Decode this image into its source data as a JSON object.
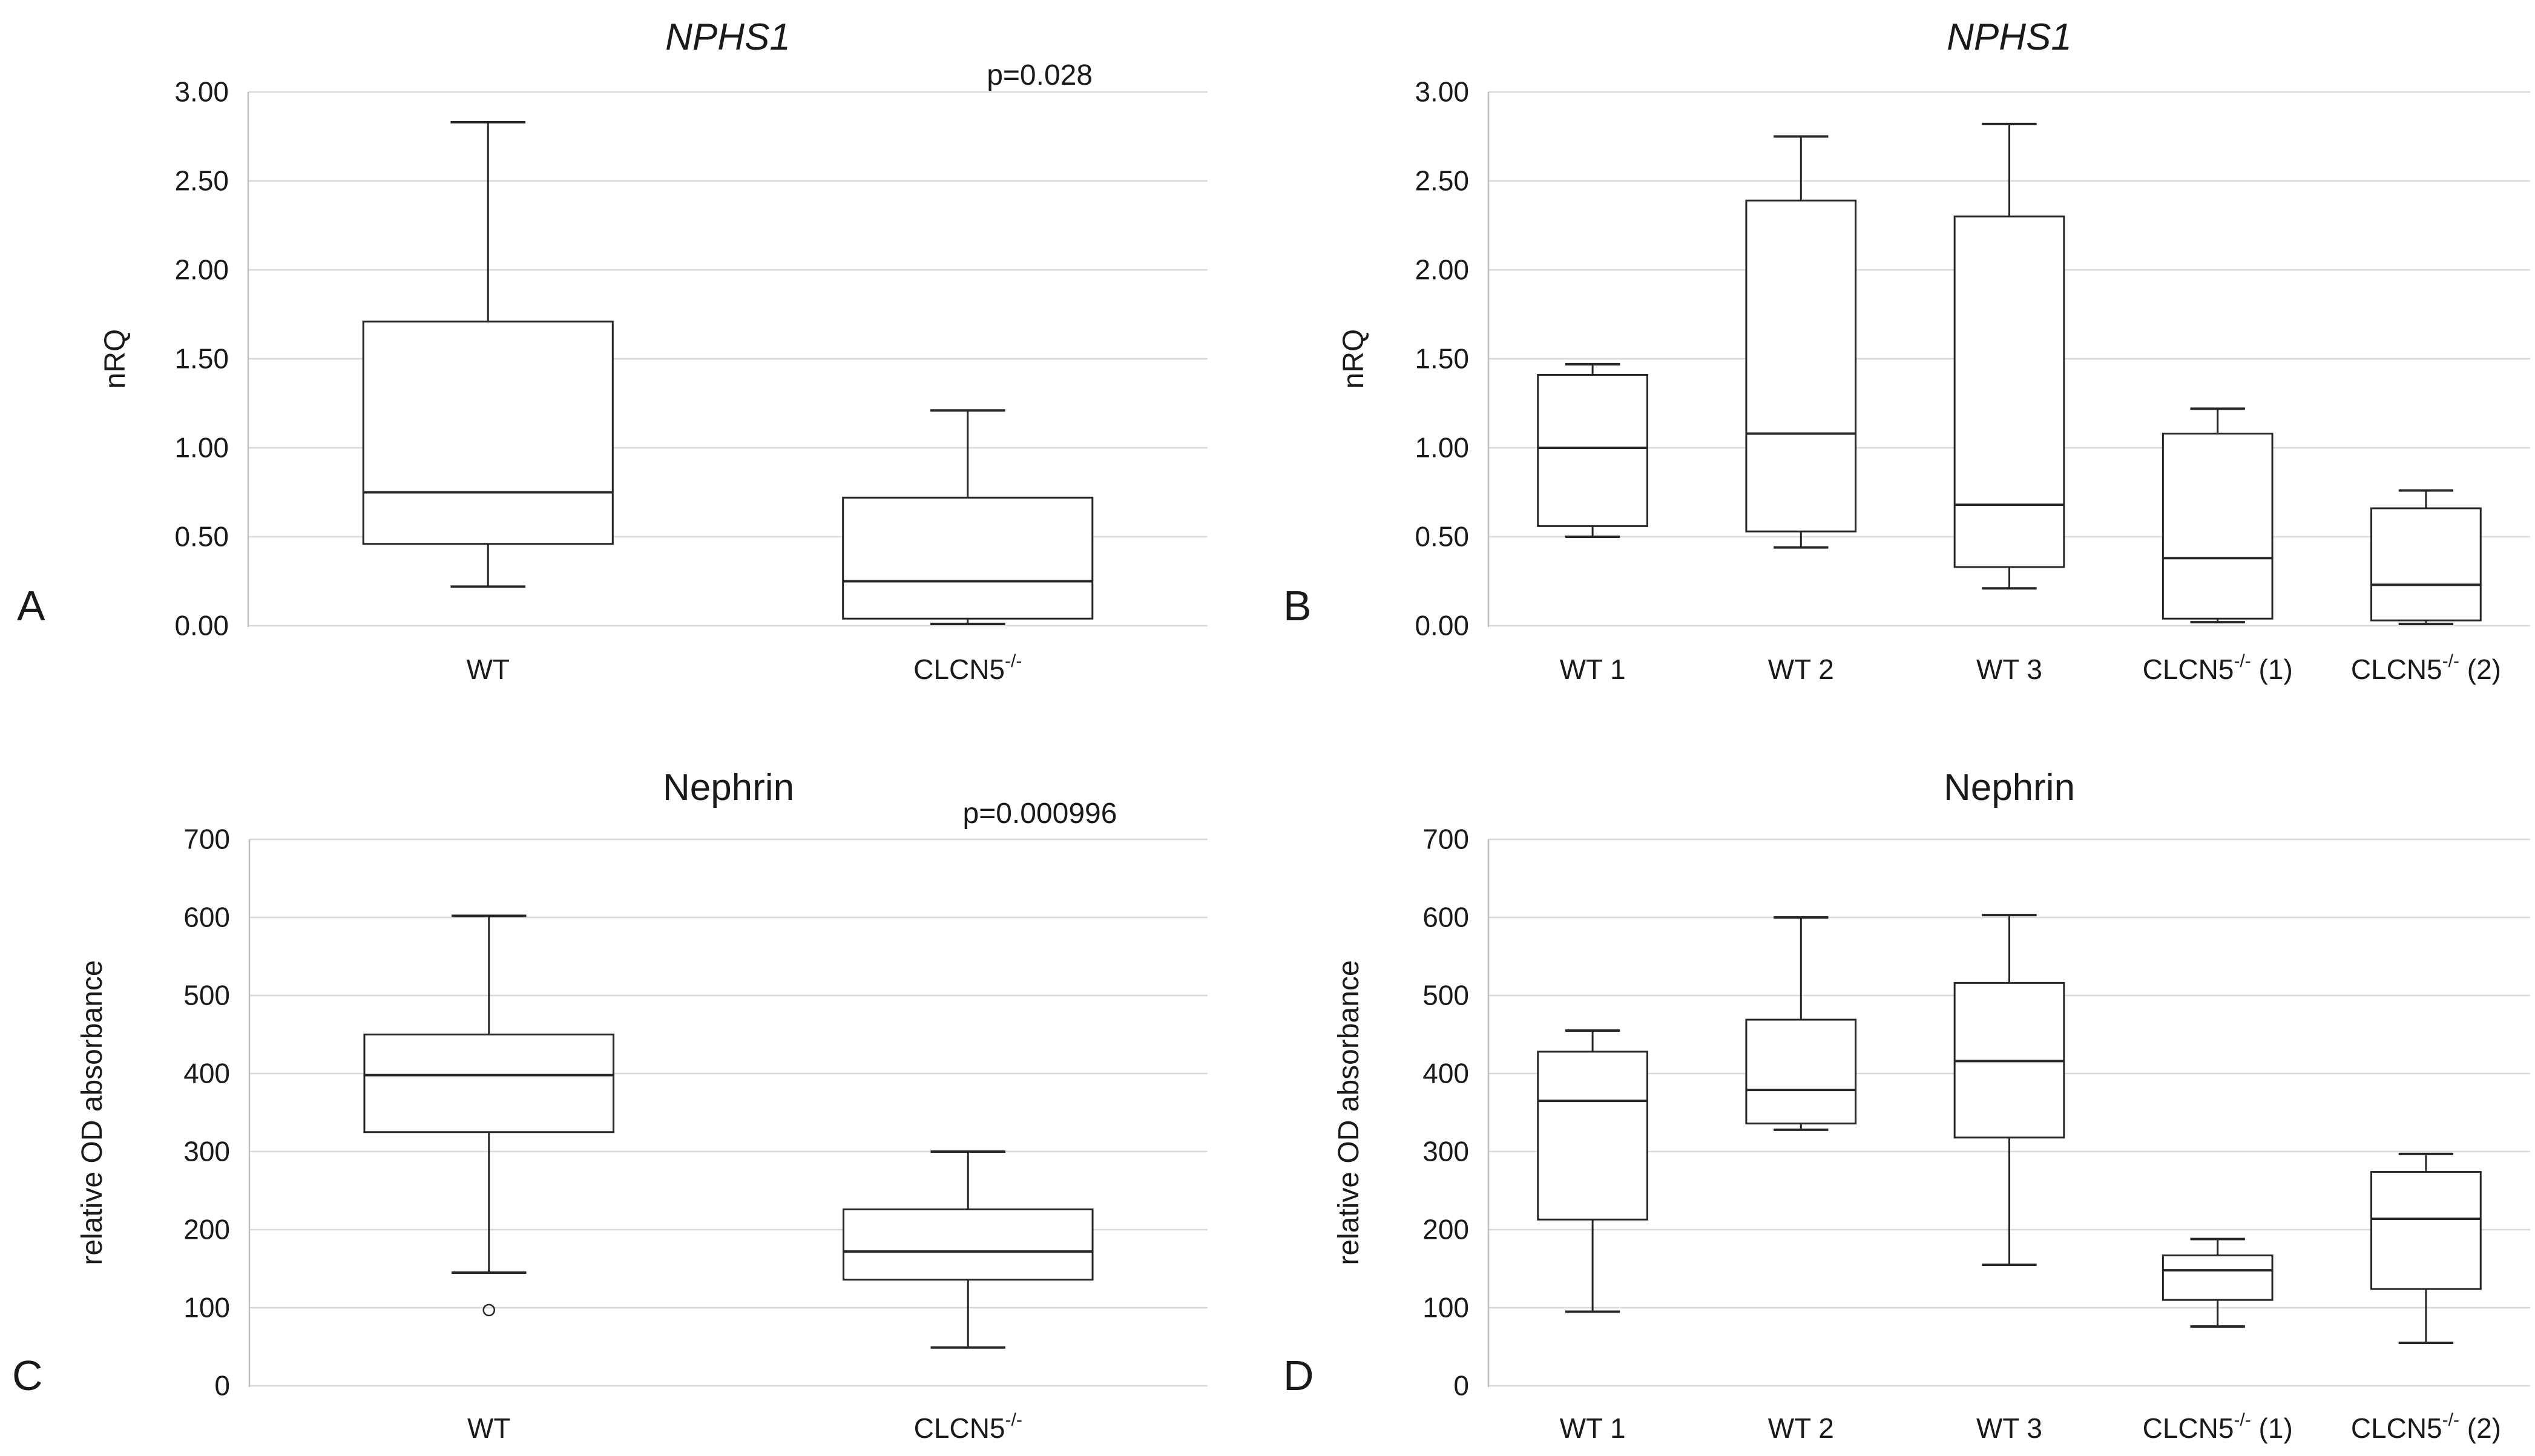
{
  "figure": {
    "background": "#ffffff",
    "text_color": "#1a1a1a",
    "gridline_color": "#d9d9d9",
    "axis_line_color": "#bfbfbf",
    "box_stroke_color": "#262626",
    "panel_letters": [
      "A",
      "B",
      "C",
      "D"
    ]
  },
  "chart_data": [
    {
      "type": "box",
      "panel": "A",
      "title": "NPHS1",
      "title_italic": true,
      "annotation": "p=0.028",
      "xlabel": "",
      "ylabel": "nRQ",
      "ylim": [
        0,
        3
      ],
      "grid": true,
      "yticks": [
        {
          "value": 0.0,
          "label": "0.00"
        },
        {
          "value": 0.5,
          "label": "0.50"
        },
        {
          "value": 1.0,
          "label": "1.00"
        },
        {
          "value": 1.5,
          "label": "1.50"
        },
        {
          "value": 2.0,
          "label": "2.00"
        },
        {
          "value": 2.5,
          "label": "2.50"
        },
        {
          "value": 3.0,
          "label": "3.00"
        }
      ],
      "categories": [
        {
          "base": "WT",
          "sup": "",
          "rest": ""
        },
        {
          "base": "CLCN5",
          "sup": "-/-",
          "rest": ""
        }
      ],
      "boxes": [
        {
          "whislo": 0.22,
          "q1": 0.46,
          "med": 0.75,
          "q3": 1.71,
          "whishi": 2.83,
          "outliers": []
        },
        {
          "whislo": 0.01,
          "q1": 0.04,
          "med": 0.25,
          "q3": 0.72,
          "whishi": 1.21,
          "outliers": []
        }
      ]
    },
    {
      "type": "box",
      "panel": "B",
      "title": "NPHS1",
      "title_italic": true,
      "annotation": "",
      "xlabel": "",
      "ylabel": "nRQ",
      "ylim": [
        0,
        3
      ],
      "grid": true,
      "yticks": [
        {
          "value": 0.0,
          "label": "0.00"
        },
        {
          "value": 0.5,
          "label": "0.50"
        },
        {
          "value": 1.0,
          "label": "1.00"
        },
        {
          "value": 1.5,
          "label": "1.50"
        },
        {
          "value": 2.0,
          "label": "2.00"
        },
        {
          "value": 2.5,
          "label": "2.50"
        },
        {
          "value": 3.0,
          "label": "3.00"
        }
      ],
      "categories": [
        {
          "base": "WT 1",
          "sup": "",
          "rest": ""
        },
        {
          "base": "WT 2",
          "sup": "",
          "rest": ""
        },
        {
          "base": "WT 3",
          "sup": "",
          "rest": ""
        },
        {
          "base": "CLCN5",
          "sup": "-/-",
          "rest": " (1)"
        },
        {
          "base": "CLCN5",
          "sup": "-/-",
          "rest": " (2)"
        }
      ],
      "boxes": [
        {
          "whislo": 0.5,
          "q1": 0.56,
          "med": 1.0,
          "q3": 1.41,
          "whishi": 1.47,
          "outliers": []
        },
        {
          "whislo": 0.44,
          "q1": 0.53,
          "med": 1.08,
          "q3": 2.39,
          "whishi": 2.75,
          "outliers": []
        },
        {
          "whislo": 0.21,
          "q1": 0.33,
          "med": 0.68,
          "q3": 2.3,
          "whishi": 2.82,
          "outliers": []
        },
        {
          "whislo": 0.02,
          "q1": 0.04,
          "med": 0.38,
          "q3": 1.08,
          "whishi": 1.22,
          "outliers": []
        },
        {
          "whislo": 0.01,
          "q1": 0.03,
          "med": 0.23,
          "q3": 0.66,
          "whishi": 0.76,
          "outliers": []
        }
      ]
    },
    {
      "type": "box",
      "panel": "C",
      "title": "Nephrin",
      "title_italic": false,
      "annotation": "p=0.000996",
      "xlabel": "",
      "ylabel": "relative OD absorbance",
      "ylim": [
        0,
        700
      ],
      "grid": true,
      "yticks": [
        {
          "value": 0,
          "label": "0"
        },
        {
          "value": 100,
          "label": "100"
        },
        {
          "value": 200,
          "label": "200"
        },
        {
          "value": 300,
          "label": "300"
        },
        {
          "value": 400,
          "label": "400"
        },
        {
          "value": 500,
          "label": "500"
        },
        {
          "value": 600,
          "label": "600"
        },
        {
          "value": 700,
          "label": "700"
        }
      ],
      "categories": [
        {
          "base": "WT",
          "sup": "",
          "rest": ""
        },
        {
          "base": "CLCN5",
          "sup": "-/-",
          "rest": ""
        }
      ],
      "boxes": [
        {
          "whislo": 145,
          "q1": 325,
          "med": 398,
          "q3": 450,
          "whishi": 602,
          "outliers": [
            97
          ]
        },
        {
          "whislo": 49,
          "q1": 136,
          "med": 172,
          "q3": 226,
          "whishi": 300,
          "outliers": []
        }
      ]
    },
    {
      "type": "box",
      "panel": "D",
      "title": "Nephrin",
      "title_italic": false,
      "annotation": "",
      "xlabel": "",
      "ylabel": "relative OD absorbance",
      "ylim": [
        0,
        700
      ],
      "grid": true,
      "yticks": [
        {
          "value": 0,
          "label": "0"
        },
        {
          "value": 100,
          "label": "100"
        },
        {
          "value": 200,
          "label": "200"
        },
        {
          "value": 300,
          "label": "300"
        },
        {
          "value": 400,
          "label": "400"
        },
        {
          "value": 500,
          "label": "500"
        },
        {
          "value": 600,
          "label": "600"
        },
        {
          "value": 700,
          "label": "700"
        }
      ],
      "categories": [
        {
          "base": "WT 1",
          "sup": "",
          "rest": ""
        },
        {
          "base": "WT 2",
          "sup": "",
          "rest": ""
        },
        {
          "base": "WT 3",
          "sup": "",
          "rest": ""
        },
        {
          "base": "CLCN5",
          "sup": "-/-",
          "rest": " (1)"
        },
        {
          "base": "CLCN5",
          "sup": "-/-",
          "rest": " (2)"
        }
      ],
      "boxes": [
        {
          "whislo": 95,
          "q1": 213,
          "med": 365,
          "q3": 428,
          "whishi": 455,
          "outliers": []
        },
        {
          "whislo": 328,
          "q1": 336,
          "med": 379,
          "q3": 469,
          "whishi": 600,
          "outliers": []
        },
        {
          "whislo": 155,
          "q1": 318,
          "med": 416,
          "q3": 516,
          "whishi": 603,
          "outliers": []
        },
        {
          "whislo": 76,
          "q1": 110,
          "med": 148,
          "q3": 167,
          "whishi": 188,
          "outliers": []
        },
        {
          "whislo": 55,
          "q1": 124,
          "med": 214,
          "q3": 274,
          "whishi": 297,
          "outliers": []
        }
      ]
    }
  ]
}
